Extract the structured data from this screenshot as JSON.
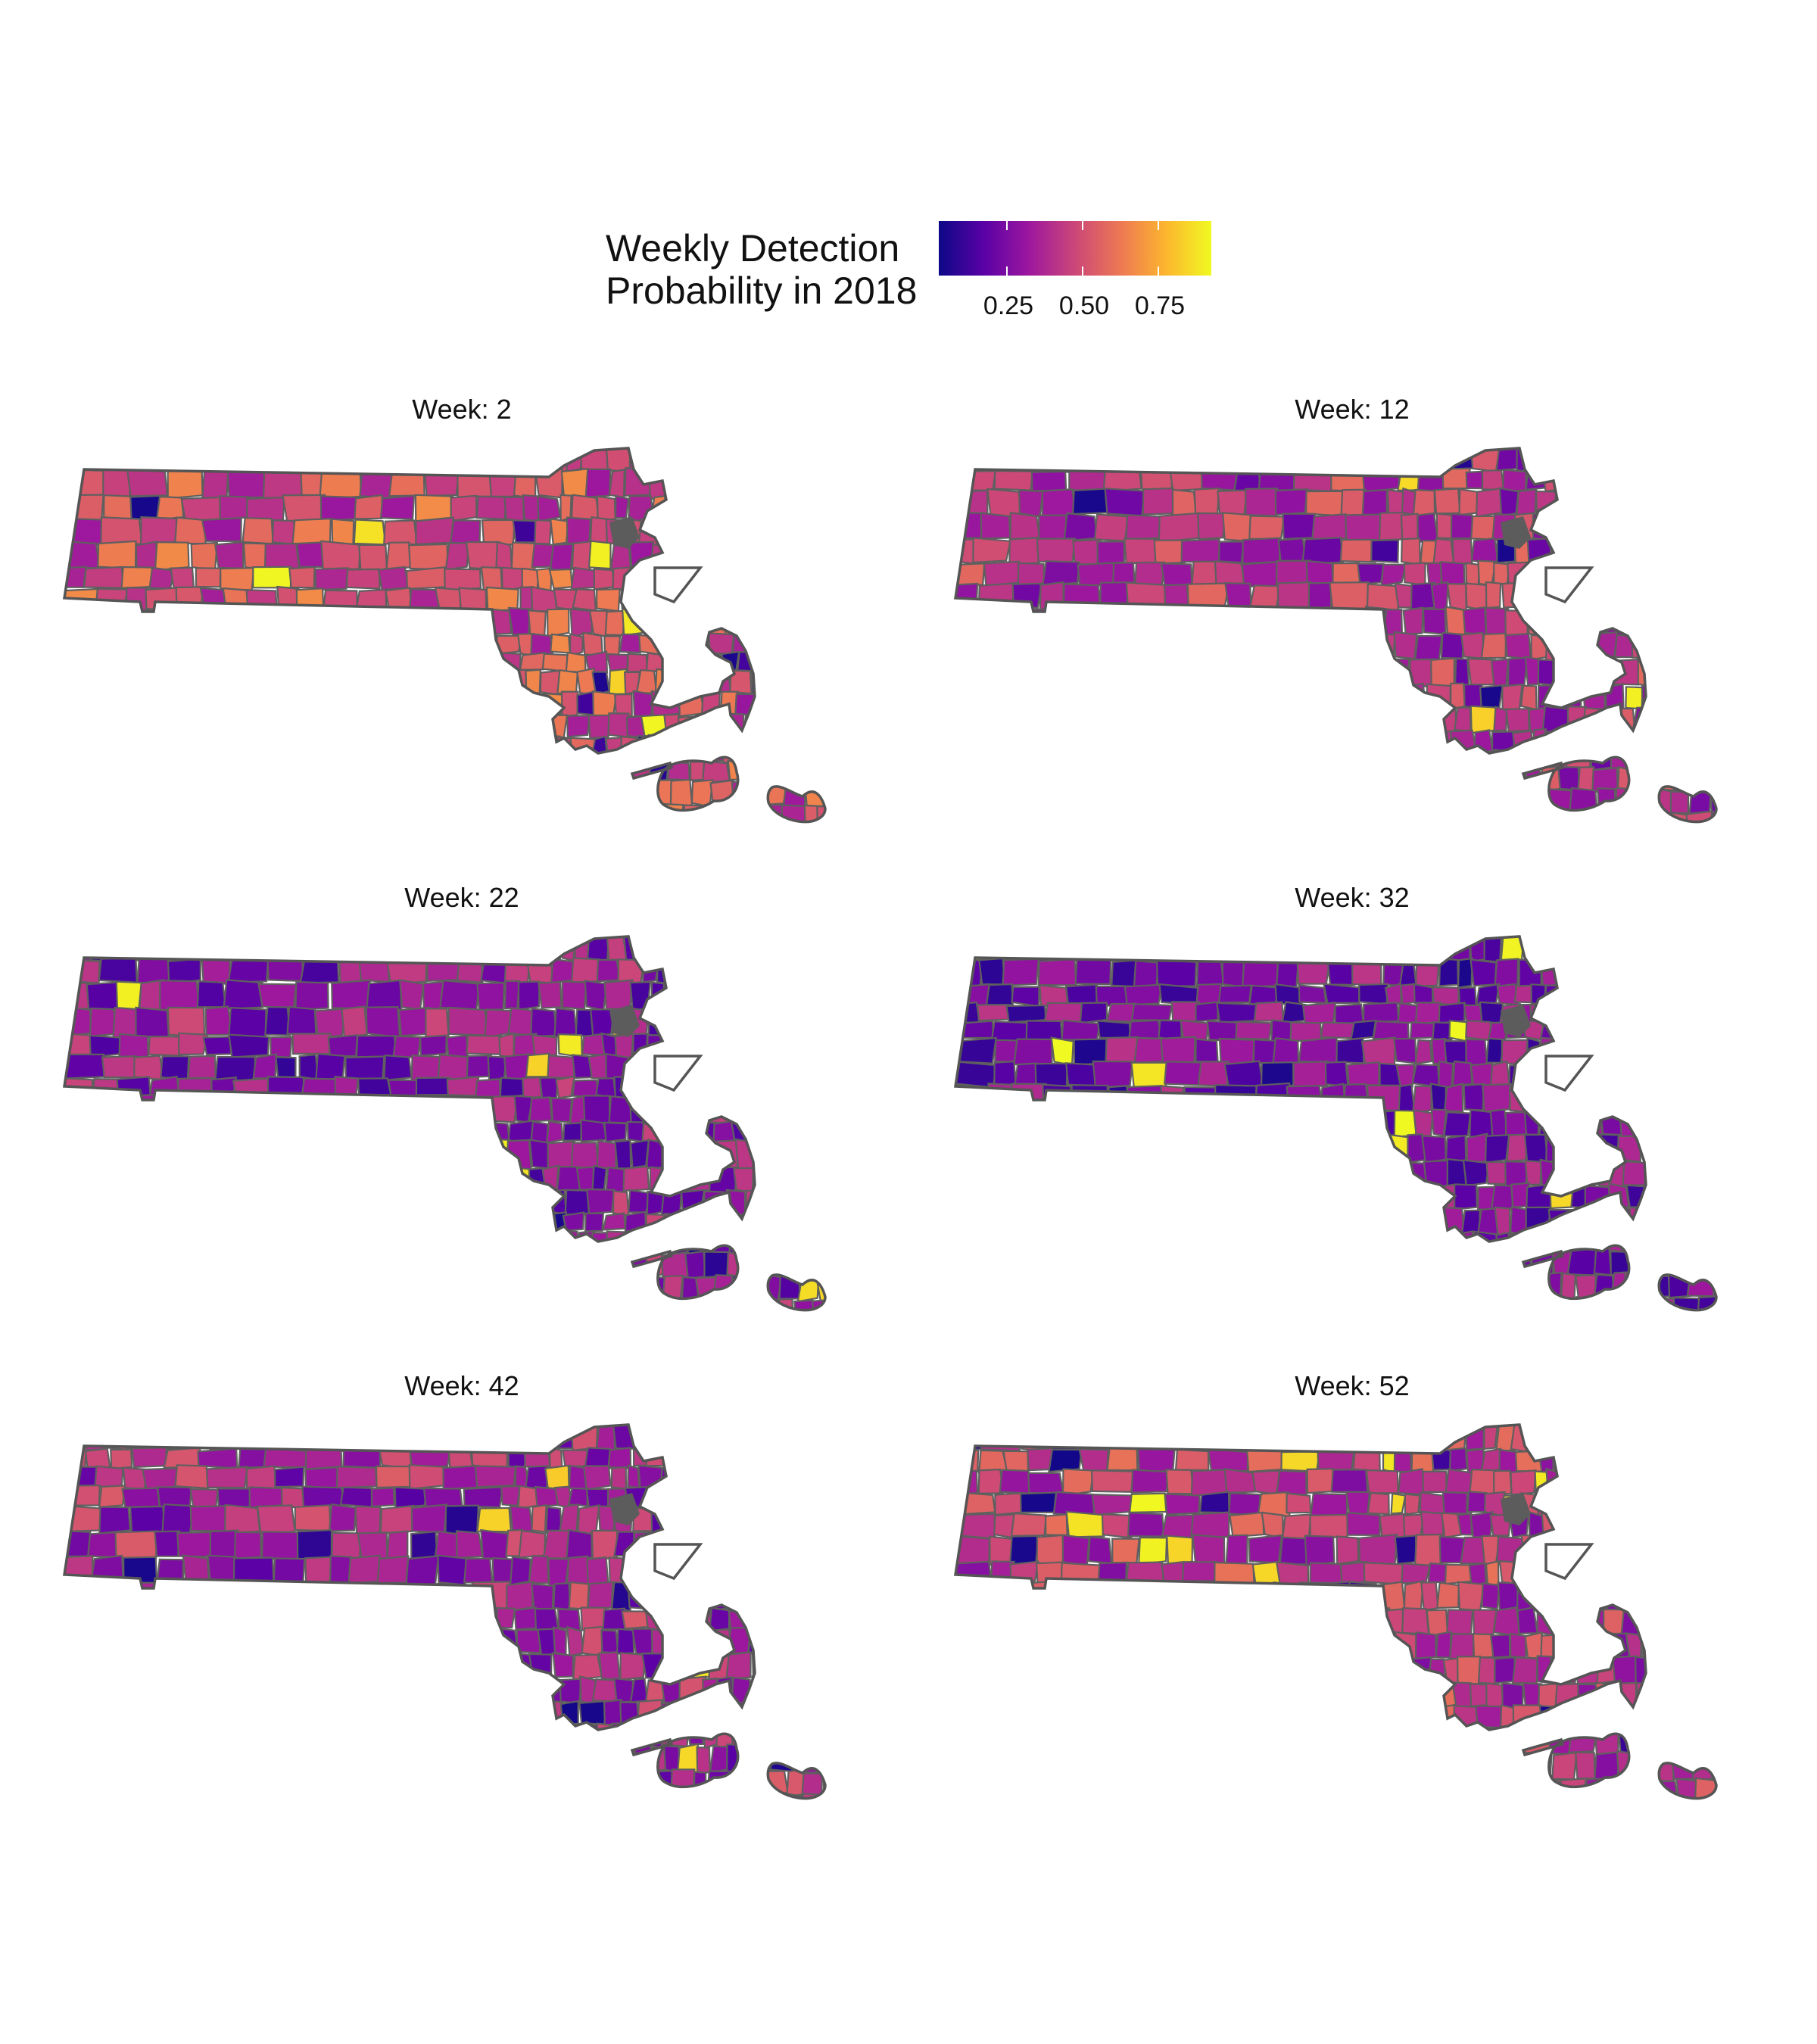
{
  "legend": {
    "title_line1": "Weekly Detection",
    "title_line2": "Probability in 2018",
    "ticks": [
      "0.25",
      "0.50",
      "0.75"
    ],
    "tick_values": [
      0.25,
      0.5,
      0.75
    ],
    "range": [
      0.05,
      0.95
    ],
    "palette": [
      "#0d0887",
      "#5c01a6",
      "#9c179e",
      "#cc4778",
      "#ed7953",
      "#fdb42f",
      "#f0f921"
    ]
  },
  "panels": [
    {
      "title": "Week: 2",
      "base_level": 0.52,
      "spread": 0.18
    },
    {
      "title": "Week: 12",
      "base_level": 0.42,
      "spread": 0.2
    },
    {
      "title": "Week: 22",
      "base_level": 0.33,
      "spread": 0.18
    },
    {
      "title": "Week: 32",
      "base_level": 0.28,
      "spread": 0.17
    },
    {
      "title": "Week: 42",
      "base_level": 0.38,
      "spread": 0.19
    },
    {
      "title": "Week: 52",
      "base_level": 0.45,
      "spread": 0.18
    }
  ]
}
